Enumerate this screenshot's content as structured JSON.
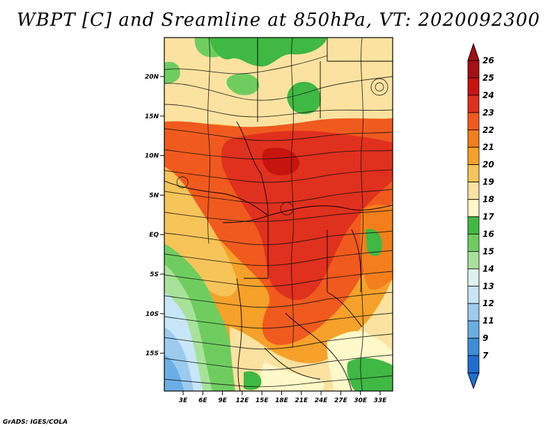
{
  "title": "WBPT [C] and Sreamline at 850hPa, VT: 2020092300",
  "footer": "GrADS: IGES/COLA",
  "map": {
    "lat_labels": [
      "20N",
      "15N",
      "10N",
      "5N",
      "EQ",
      "5S",
      "10S",
      "15S"
    ],
    "lon_labels": [
      "3E",
      "6E",
      "9E",
      "12E",
      "15E",
      "18E",
      "21E",
      "24E",
      "27E",
      "30E",
      "33E"
    ]
  },
  "colorbar": {
    "labels": [
      "26",
      "25",
      "24",
      "23",
      "22",
      "21",
      "20",
      "19",
      "18",
      "17",
      "16",
      "15",
      "14",
      "13",
      "12",
      "11",
      "9",
      "7"
    ],
    "colors": [
      "#a50f15",
      "#c8140f",
      "#e0301e",
      "#f05a1e",
      "#f37f1c",
      "#f5a12a",
      "#f6c458",
      "#fbe2a0",
      "#fff8c8",
      "#3fb844",
      "#6fcd60",
      "#a8e29a",
      "#dff3ee",
      "#c7e6f8",
      "#9ccbef",
      "#6aaee6",
      "#3c8ed9",
      "#1f6fd0"
    ]
  }
}
